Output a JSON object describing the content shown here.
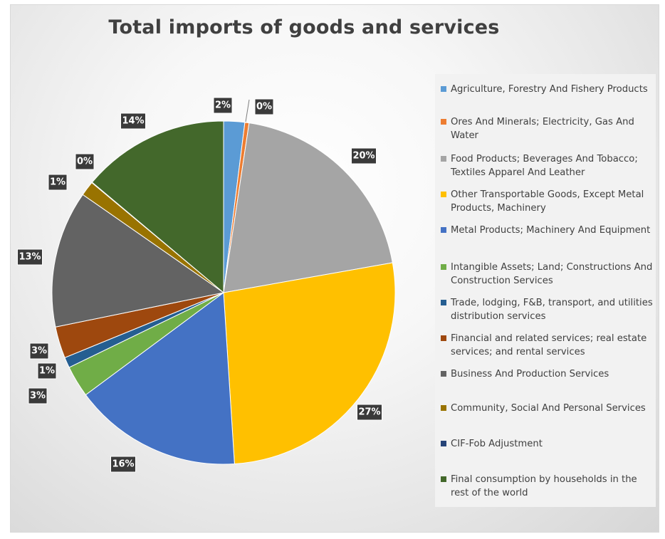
{
  "chart_data": {
    "type": "pie",
    "title": "Total imports of goods and services",
    "legend_position": "right",
    "slices": [
      {
        "name": "Agriculture, Forestry And Fishery Products",
        "value": 2,
        "label": "2%",
        "color": "#5B9BD5"
      },
      {
        "name": "Ores And Minerals; Electricity, Gas And Water",
        "value": 0.4,
        "label": "0%",
        "color": "#ED7D31"
      },
      {
        "name": "Food Products; Beverages And Tobacco; Textiles Apparel And Leather",
        "value": 20,
        "label": "20%",
        "color": "#A5A5A5"
      },
      {
        "name": "Other Transportable Goods, Except Metal Products, Machinery",
        "value": 27,
        "label": "27%",
        "color": "#FFC000"
      },
      {
        "name": "Metal Products; Machinery And Equipment",
        "value": 16,
        "label": "16%",
        "color": "#4472C4"
      },
      {
        "name": "Intangible Assets; Land; Constructions And Construction Services",
        "value": 3,
        "label": "3%",
        "color": "#70AD47"
      },
      {
        "name": "Trade, lodging, F&B, transport, and utilities distribution services",
        "value": 1,
        "label": "1%",
        "color": "#255E91"
      },
      {
        "name": "Financial and related services; real estate services; and rental services",
        "value": 3,
        "label": "3%",
        "color": "#9E480E"
      },
      {
        "name": "Business And Production Services",
        "value": 13,
        "label": "13%",
        "color": "#636363"
      },
      {
        "name": "Community, Social And Personal Services",
        "value": 1.4,
        "label": "1%",
        "color": "#997300"
      },
      {
        "name": "CIF-Fob Adjustment",
        "value": 0.05,
        "label": "0%",
        "color": "#264478"
      },
      {
        "name": "Final consumption by households in the rest of the world",
        "value": 14,
        "label": "14%",
        "color": "#43682B"
      }
    ]
  }
}
